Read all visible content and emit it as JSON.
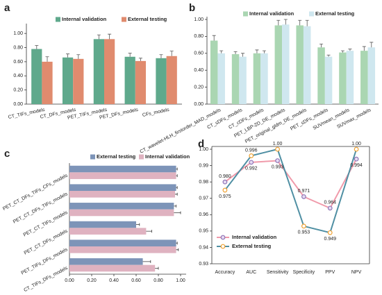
{
  "chart_data": [
    {
      "type": "bar",
      "panel": "a",
      "legend": "top",
      "categories": [
        "CT_TIFs_models",
        "CT_DFs_models",
        "PET_TIFs_models",
        "PET_DFs_models",
        "CFs_models"
      ],
      "series": [
        {
          "name": "Internal validation",
          "color": "#5fa98c",
          "values": [
            0.78,
            0.66,
            0.92,
            0.67,
            0.65
          ],
          "errors": [
            0.05,
            0.05,
            0.06,
            0.05,
            0.05
          ]
        },
        {
          "name": "External testing",
          "color": "#e08b6e",
          "values": [
            0.6,
            0.64,
            0.92,
            0.61,
            0.68
          ],
          "errors": [
            0.07,
            0.06,
            0.07,
            0.04,
            0.07
          ]
        }
      ],
      "ylim": [
        0,
        1.1
      ],
      "yticks": [
        {
          "value": 0,
          "label": "0.00"
        },
        {
          "value": 0.2,
          "label": "0.20"
        },
        {
          "value": 0.4,
          "label": "0.40"
        },
        {
          "value": 0.6,
          "label": "0.60"
        },
        {
          "value": 0.8,
          "label": "0.80"
        },
        {
          "value": 1,
          "label": "1.00"
        }
      ]
    },
    {
      "type": "bar",
      "panel": "b",
      "legend": "top",
      "categories": [
        "CT_wavelet-HLH_firstorder_MAD_models",
        "CT_sDFs_models",
        "CT_cDFs_models",
        "PET_LBP-2D_DE_models",
        "PET_original_gldm_DE_models",
        "PET_sDFs_models",
        "SUVmean_models",
        "SUVmax_models"
      ],
      "series": [
        {
          "name": "Internal validation",
          "color": "#aad6b2",
          "values": [
            0.75,
            0.59,
            0.6,
            0.93,
            0.93,
            0.67,
            0.61,
            0.63
          ],
          "errors": [
            0.06,
            0.03,
            0.04,
            0.06,
            0.06,
            0.04,
            0.02,
            0.05
          ]
        },
        {
          "name": "External testing",
          "color": "#cfe7ef",
          "values": [
            0.6,
            0.56,
            0.6,
            0.94,
            0.92,
            0.56,
            0.63,
            0.67
          ],
          "errors": [
            0.03,
            0.04,
            0.03,
            0.06,
            0.07,
            0.02,
            0.02,
            0.06
          ]
        }
      ],
      "ylim": [
        0,
        1
      ],
      "yticks": [
        {
          "value": 0,
          "label": "0.00"
        },
        {
          "value": 0.2,
          "label": "0.20"
        },
        {
          "value": 0.4,
          "label": "0.40"
        },
        {
          "value": 0.6,
          "label": "0.60"
        },
        {
          "value": 0.8,
          "label": "0.80"
        },
        {
          "value": 1,
          "label": "1.00"
        }
      ]
    },
    {
      "type": "barh",
      "panel": "c",
      "legend": "top",
      "categories": [
        "PET_CT_DFs_TIFs_CFs_models",
        "PET_CT_DFs_TIFs_models",
        "PET_CT_TIFs_models",
        "PET_CT_DFs_models",
        "PET_TIFs_DFs_models",
        "CT_TIFs_DFs_models"
      ],
      "series": [
        {
          "name": "External testing",
          "color": "#7d94b8",
          "values": [
            0.96,
            0.96,
            0.94,
            0.6,
            0.96,
            0.66
          ],
          "errors": [
            0.01,
            0.01,
            0.02,
            0.03,
            0.01,
            0.07
          ]
        },
        {
          "name": "Internal validation",
          "color": "#dfb2c0",
          "values": [
            0.96,
            0.95,
            0.94,
            0.69,
            0.96,
            0.77
          ],
          "errors": [
            0.01,
            0.02,
            0.06,
            0.05,
            0.02,
            0.03
          ]
        }
      ],
      "xlim": [
        0,
        1.05
      ],
      "xticks": [
        {
          "value": 0,
          "label": "0.00"
        },
        {
          "value": 0.2,
          "label": "0.20"
        },
        {
          "value": 0.4,
          "label": "0.40"
        },
        {
          "value": 0.6,
          "label": "0.60"
        },
        {
          "value": 0.8,
          "label": "0.80"
        },
        {
          "value": 1,
          "label": "1.00"
        }
      ]
    },
    {
      "type": "line",
      "panel": "d",
      "legend": "lower left",
      "categories": [
        "Accuracy",
        "AUC",
        "Sensitivity",
        "Specificity",
        "PPV",
        "NPV"
      ],
      "series": [
        {
          "name": "Internal validation",
          "color": "#f09aaa",
          "marker_color": "#8f74b6",
          "values": [
            0.98,
            0.992,
            0.993,
            0.971,
            0.964,
            0.994
          ],
          "value_labels": [
            "0.980",
            "0.992",
            "0.993",
            "0.971",
            "0.964",
            "0.994"
          ]
        },
        {
          "name": "External testing",
          "color": "#4f8fa3",
          "marker_color": "#f0a232",
          "values": [
            0.975,
            0.996,
            1.0,
            0.953,
            0.949,
            1.0
          ],
          "value_labels": [
            "0.975",
            "0.996",
            "1.00",
            "0.953",
            "0.949",
            "1.00"
          ]
        }
      ],
      "ylim": [
        0.93,
        1.0
      ],
      "yticks": [
        0.93,
        0.94,
        0.95,
        0.96,
        0.97,
        0.98,
        0.99,
        {
          "value": 1,
          "label": "1.00"
        }
      ]
    }
  ]
}
